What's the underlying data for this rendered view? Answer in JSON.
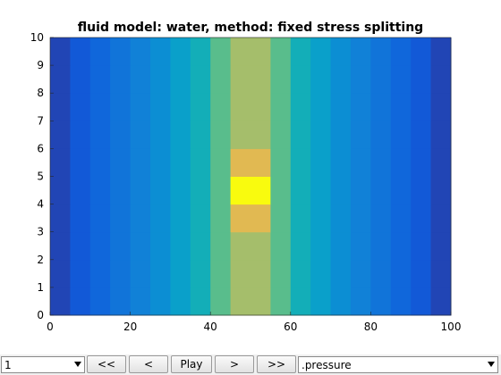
{
  "chart_data": {
    "type": "heatmap",
    "title": "fluid model: water, method: fixed stress splitting",
    "xlim": [
      0,
      100
    ],
    "ylim": [
      0,
      10
    ],
    "x_ticks": [
      "0",
      "20",
      "40",
      "60",
      "80",
      "100"
    ],
    "y_ticks": [
      "0",
      "1",
      "2",
      "3",
      "4",
      "5",
      "6",
      "7",
      "8",
      "9",
      "10"
    ],
    "colormap": "parula",
    "columns": 20,
    "rows": 10,
    "column_values": [
      0.08,
      0.14,
      0.2,
      0.26,
      0.32,
      0.38,
      0.48,
      0.58,
      0.72,
      0.84,
      0.84,
      0.72,
      0.58,
      0.48,
      0.38,
      0.32,
      0.26,
      0.2,
      0.14,
      0.08
    ],
    "peak": {
      "x_range": [
        47.5,
        52.5
      ],
      "y_range": [
        4,
        5
      ],
      "value": 1.0
    },
    "halo": {
      "x_range": [
        47.5,
        52.5
      ],
      "y_range": [
        3,
        6
      ],
      "value": 0.92
    }
  },
  "controls": {
    "frame_select": {
      "value": "1"
    },
    "buttons": {
      "first": "<<",
      "prev": "<",
      "play": "Play",
      "next": ">",
      "last": ">>"
    },
    "field_select": {
      "value": ".pressure"
    }
  }
}
